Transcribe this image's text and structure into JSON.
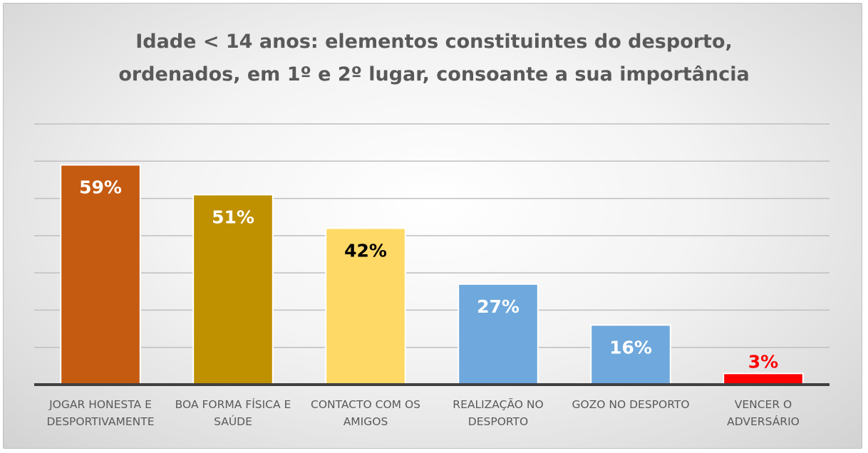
{
  "chart_data": {
    "type": "bar",
    "title_lines": [
      "Idade < 14 anos: elementos constituintes do desporto,",
      "ordenados, em 1º e 2º lugar, consoante a sua importância"
    ],
    "categories": [
      [
        "JOGAR HONESTA E",
        "DESPORTIVAMENTE"
      ],
      [
        "BOA FORMA FÍSICA E",
        "SAÚDE"
      ],
      [
        "CONTACTO COM OS",
        "AMIGOS"
      ],
      [
        "REALIZAÇÃO NO",
        "DESPORTO"
      ],
      [
        "GOZO NO DESPORTO"
      ],
      [
        "VENCER O",
        "ADVERSÁRIO"
      ]
    ],
    "values": [
      59,
      51,
      42,
      27,
      16,
      3
    ],
    "value_labels": [
      "59%",
      "51%",
      "42%",
      "27%",
      "16%",
      "3%"
    ],
    "bar_colors": [
      "#c55a11",
      "#bf9000",
      "#ffd966",
      "#6fa8dc",
      "#6fa8dc",
      "#ff0000"
    ],
    "label_colors": [
      "#ffffff",
      "#ffffff",
      "#000000",
      "#ffffff",
      "#ffffff",
      "#ff0000"
    ],
    "ylim": [
      0,
      70
    ],
    "gridline_step": 10,
    "xlabel": "",
    "ylabel": "",
    "grid": true
  }
}
